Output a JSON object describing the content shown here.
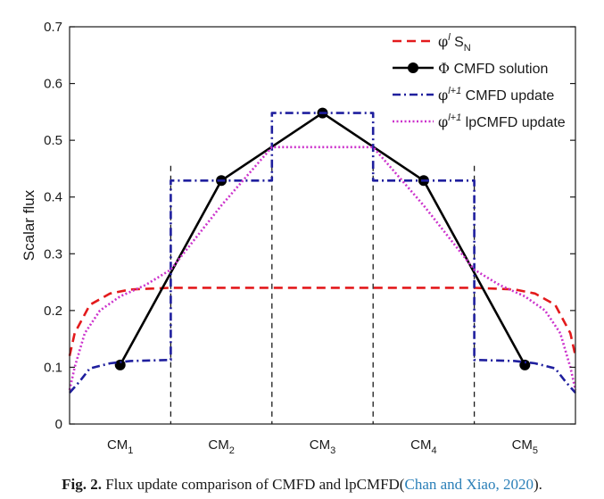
{
  "chart_data": {
    "type": "line",
    "ylabel": "Scalar flux",
    "xlabel": "",
    "ylim": [
      0,
      0.7
    ],
    "yticks": [
      "0",
      "0.1",
      "0.2",
      "0.3",
      "0.4",
      "0.5",
      "0.6",
      "0.7"
    ],
    "xlim": [
      0,
      5
    ],
    "coarse_mesh_labels": [
      {
        "base": "CM",
        "sub": "1"
      },
      {
        "base": "CM",
        "sub": "2"
      },
      {
        "base": "CM",
        "sub": "3"
      },
      {
        "base": "CM",
        "sub": "4"
      },
      {
        "base": "CM",
        "sub": "5"
      }
    ],
    "mesh_boundaries": [
      1,
      2,
      3,
      4
    ],
    "legend_position": "top-right",
    "series": [
      {
        "name": "phi_l_SN",
        "color": "#e31a1c",
        "style": "dashed",
        "x": [
          0,
          0.05,
          0.2,
          0.4,
          0.6,
          1,
          4,
          4.4,
          4.6,
          4.8,
          4.95,
          5
        ],
        "y": [
          0.12,
          0.16,
          0.21,
          0.23,
          0.237,
          0.24,
          0.24,
          0.237,
          0.23,
          0.21,
          0.16,
          0.12
        ]
      },
      {
        "name": "Phi_CMFD_solution",
        "color": "#000000",
        "style": "solid-markers",
        "x": [
          0.5,
          1.5,
          2.5,
          3.5,
          4.5
        ],
        "y": [
          0.104,
          0.429,
          0.548,
          0.429,
          0.104
        ]
      },
      {
        "name": "phi_l1_CMFD_update",
        "color": "#1f1f9e",
        "style": "dashdot",
        "x": [
          0,
          0.1,
          0.2,
          0.4,
          0.6,
          1,
          1,
          2,
          2,
          3,
          3,
          4,
          4,
          4.4,
          4.6,
          4.8,
          4.9,
          5
        ],
        "y": [
          0.055,
          0.075,
          0.098,
          0.107,
          0.111,
          0.113,
          0.429,
          0.429,
          0.548,
          0.548,
          0.429,
          0.429,
          0.113,
          0.111,
          0.107,
          0.098,
          0.075,
          0.055
        ]
      },
      {
        "name": "phi_l1_lpCMFD_update",
        "color": "#cc33cc",
        "style": "dotted",
        "x": [
          0,
          0.05,
          0.15,
          0.3,
          0.5,
          0.75,
          1,
          1.5,
          2,
          2.5,
          3,
          3.5,
          4,
          4.25,
          4.5,
          4.7,
          4.85,
          4.95,
          5
        ],
        "y": [
          0.06,
          0.1,
          0.16,
          0.2,
          0.225,
          0.245,
          0.272,
          0.385,
          0.488,
          0.488,
          0.488,
          0.385,
          0.272,
          0.245,
          0.225,
          0.2,
          0.16,
          0.1,
          0.06
        ]
      }
    ],
    "legend": [
      {
        "series": "phi_l_SN",
        "sym": "φ",
        "sup": "l",
        "text": " S",
        "sub": "N"
      },
      {
        "series": "Phi_CMFD_solution",
        "sym": "Φ",
        "sup": "",
        "text": " CMFD solution",
        "sub": ""
      },
      {
        "series": "phi_l1_CMFD_update",
        "sym": "φ",
        "sup": "l+1",
        "text": " CMFD update",
        "sub": ""
      },
      {
        "series": "phi_l1_lpCMFD_update",
        "sym": "φ",
        "sup": "l+1",
        "text": " lpCMFD update",
        "sub": ""
      }
    ]
  },
  "caption": {
    "label": "Fig. 2.",
    "text": " Flux update comparison of CMFD and lpCMFD(",
    "citation": "Chan and Xiao, 2020",
    "end": ")."
  }
}
